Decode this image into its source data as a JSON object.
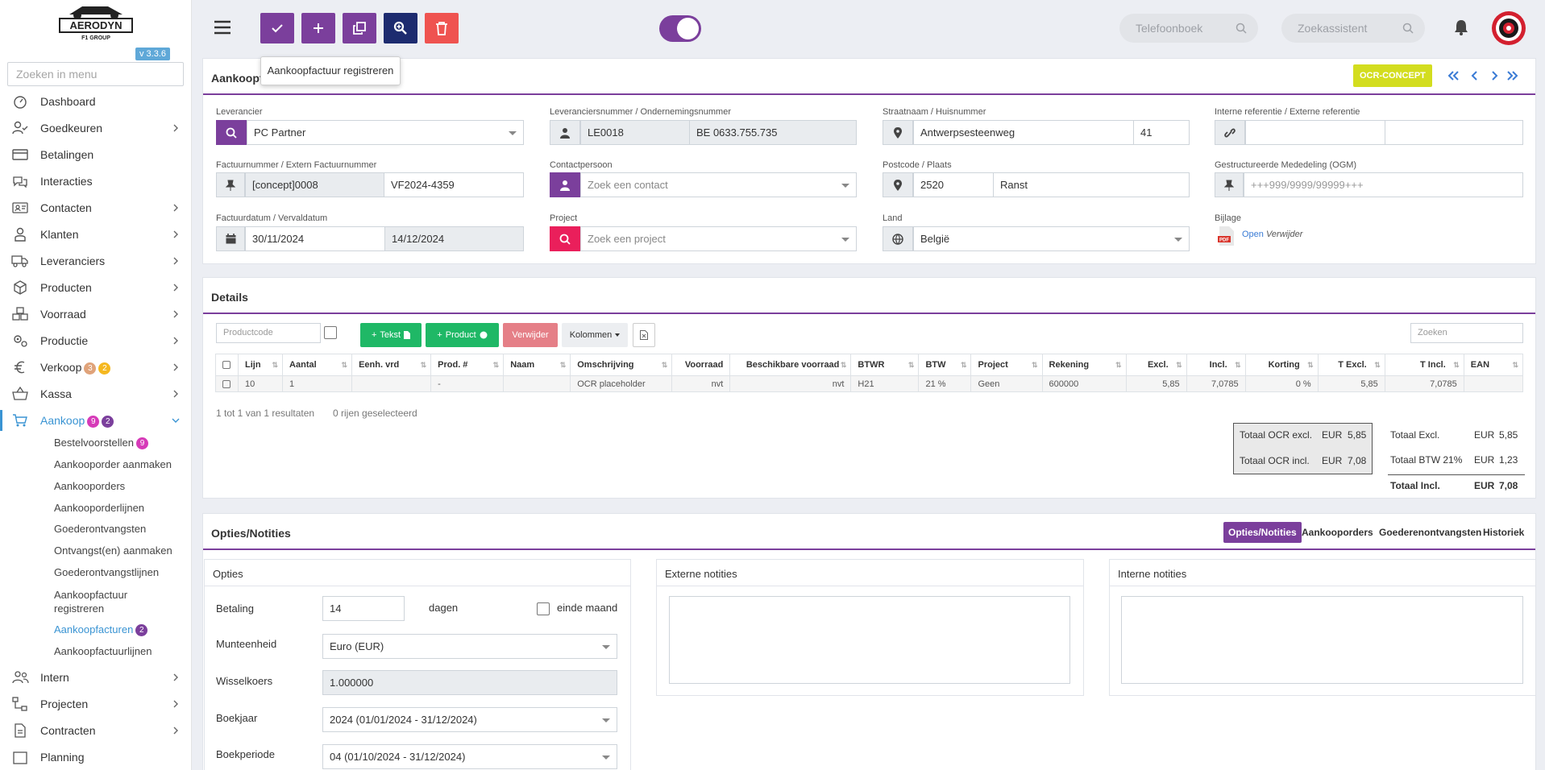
{
  "app": {
    "version": "v 3.3.6",
    "logo_text": "AERODYN",
    "logo_sub": "F1 GROUP"
  },
  "sidebar": {
    "search_placeholder": "Zoeken in menu",
    "items": [
      {
        "label": "Dashboard"
      },
      {
        "label": "Goedkeuren"
      },
      {
        "label": "Betalingen"
      },
      {
        "label": "Interacties"
      },
      {
        "label": "Contacten"
      },
      {
        "label": "Klanten"
      },
      {
        "label": "Leveranciers"
      },
      {
        "label": "Producten"
      },
      {
        "label": "Voorraad"
      },
      {
        "label": "Productie"
      },
      {
        "label": "Verkoop",
        "badge1": "3",
        "badge2": "2"
      },
      {
        "label": "Kassa"
      },
      {
        "label": "Aankoop",
        "badge1": "9",
        "badge2": "2"
      },
      {
        "label": "Intern"
      },
      {
        "label": "Projecten"
      },
      {
        "label": "Contracten"
      },
      {
        "label": "Planning"
      }
    ],
    "aankoop_sub": [
      {
        "label": "Bestelvoorstellen",
        "badge": "9"
      },
      {
        "label": "Aankooporder aanmaken"
      },
      {
        "label": "Aankooporders"
      },
      {
        "label": "Aankooporderlijnen"
      },
      {
        "label": "Goederontvangsten"
      },
      {
        "label": "Ontvangst(en) aanmaken"
      },
      {
        "label": "Goederontvangstlijnen"
      },
      {
        "label": "Aankoopfactuur registreren"
      },
      {
        "label": "Aankoopfacturen",
        "badge": "2"
      },
      {
        "label": "Aankoopfactuurlijnen"
      }
    ]
  },
  "topbar": {
    "tooltip": "Aankoopfactuur registreren",
    "phonebook_placeholder": "Telefoonboek",
    "assistant_placeholder": "Zoekassistent"
  },
  "header_card": {
    "title": "Aankoopfactuur",
    "status_badge": "OCR-CONCEPT",
    "labels": {
      "leverancier": "Leverancier",
      "levnr": "Leveranciersnummer / Ondernemingsnummer",
      "straat": "Straatnaam / Huisnummer",
      "ref": "Interne referentie / Externe referentie",
      "factnr": "Factuurnummer / Extern Factuurnummer",
      "contact": "Contactpersoon",
      "postcode": "Postcode / Plaats",
      "ogm": "Gestructureerde Mededeling (OGM)",
      "datum": "Factuurdatum / Vervaldatum",
      "project": "Project",
      "land": "Land",
      "bijlage": "Bijlage"
    },
    "values": {
      "leverancier": "PC Partner",
      "levnr": "LE0018",
      "ondernemingsnr": "BE 0633.755.735",
      "straat": "Antwerpsesteenweg",
      "huisnr": "41",
      "int_ref": "",
      "ext_ref": "",
      "factnr": "[concept]0008",
      "ext_factnr": "VF2024-4359",
      "contact_placeholder": "Zoek een contact",
      "postcode": "2520",
      "plaats": "Ranst",
      "ogm_placeholder": "+++999/9999/99999+++",
      "factuurdatum": "30/11/2024",
      "vervaldatum": "14/12/2024",
      "project_placeholder": "Zoek een project",
      "land": "België",
      "bijlage_open": "Open",
      "bijlage_remove": "Verwijder"
    }
  },
  "details": {
    "title": "Details",
    "productcode_placeholder": "Productcode",
    "btn_tekst": "Tekst",
    "btn_product": "Product",
    "btn_verwijder": "Verwijder",
    "btn_kolommen": "Kolommen",
    "search_placeholder": "Zoeken",
    "columns": [
      "Lijn",
      "Aantal",
      "Eenh. vrd",
      "Prod. #",
      "Naam",
      "Omschrijving",
      "Voorraad",
      "Beschikbare voorraad",
      "BTWR",
      "BTW",
      "Project",
      "Rekening",
      "Excl.",
      "Incl.",
      "Korting",
      "T Excl.",
      "T Incl.",
      "EAN"
    ],
    "rows": [
      [
        "10",
        "1",
        "",
        "-",
        "",
        "OCR placeholder",
        "nvt",
        "nvt",
        "H21",
        "21 %",
        "Geen",
        "600000",
        "5,85",
        "7,0785",
        "0 %",
        "5,85",
        "7,0785",
        ""
      ]
    ],
    "footer_info": "1 tot 1 van 1 resultaten",
    "selected_info": "0 rijen geselecteerd",
    "ocr_totals": [
      {
        "label": "Totaal OCR excl.",
        "cur": "EUR",
        "value": "5,85"
      },
      {
        "label": "Totaal OCR incl.",
        "cur": "EUR",
        "value": "7,08"
      }
    ],
    "totals": [
      {
        "label": "Totaal Excl.",
        "cur": "EUR",
        "value": "5,85"
      },
      {
        "label": "Totaal BTW 21%",
        "cur": "EUR",
        "value": "1,23"
      },
      {
        "label": "Totaal Incl.",
        "cur": "EUR",
        "value": "7,08"
      }
    ]
  },
  "options": {
    "title": "Opties/Notities",
    "tabs": [
      "Opties/Notities",
      "Aankooporders",
      "Goederenontvangsten",
      "Historiek"
    ],
    "opties_title": "Opties",
    "externe_title": "Externe notities",
    "interne_title": "Interne notities",
    "betaling_label": "Betaling",
    "betaling_value": "14",
    "dagen": "dagen",
    "einde_maand": "einde maand",
    "munt_label": "Munteenheid",
    "munt_value": "Euro (EUR)",
    "wissel_label": "Wisselkoers",
    "wissel_value": "1.000000",
    "boekjaar_label": "Boekjaar",
    "boekjaar_value": "2024 (01/01/2024 - 31/12/2024)",
    "boekperiode_label": "Boekperiode",
    "boekperiode_value": "04 (01/10/2024 - 31/12/2024)"
  },
  "colors": {
    "purple": "#7b3f9c",
    "navy": "#1d2b6f",
    "red": "#ef5350",
    "green": "#1fb866",
    "accent": "#3a94d3",
    "yellow": "#d3dd1f"
  }
}
